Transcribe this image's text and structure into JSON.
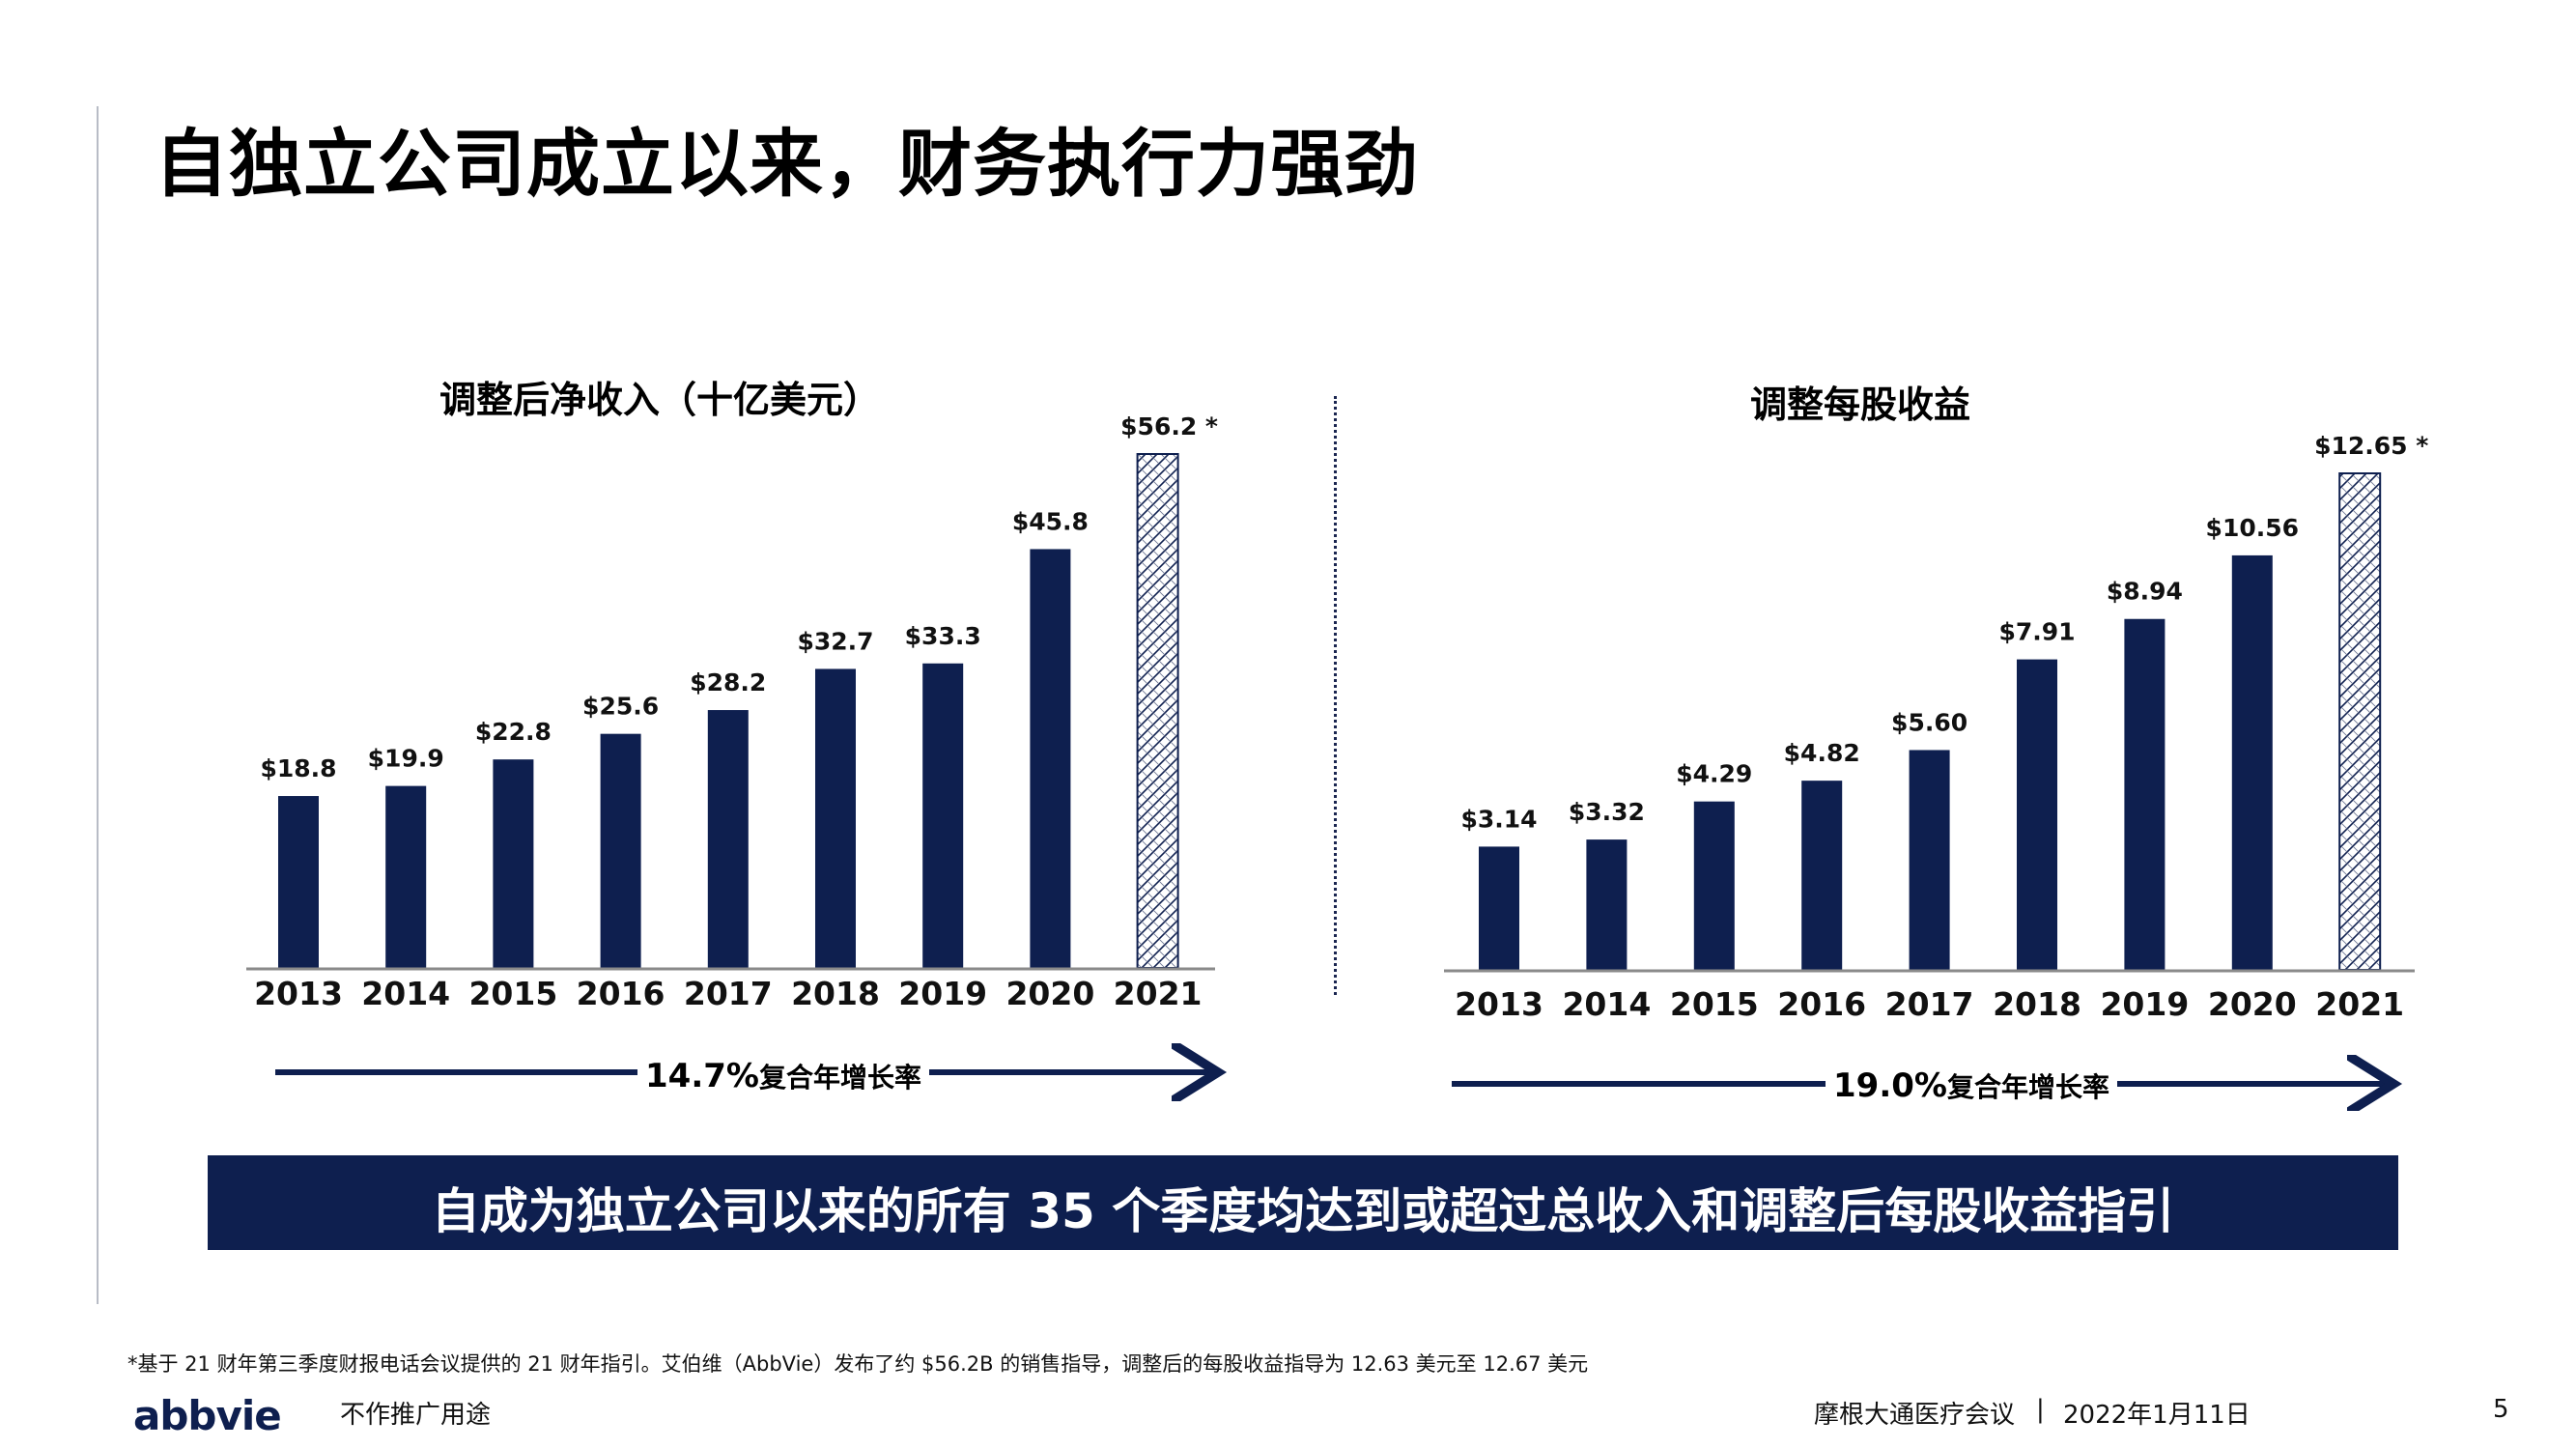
{
  "title": "自独立公司成立以来，财务执行力强劲",
  "colors": {
    "bar": "#0e1f4f",
    "axis": "#8a8a8a",
    "hatch": "#0e1f4f"
  },
  "chart_data": [
    {
      "type": "bar",
      "title": "调整后净收入（十亿美元）",
      "categories": [
        "2013",
        "2014",
        "2015",
        "2016",
        "2017",
        "2018",
        "2019",
        "2020",
        "2021"
      ],
      "values": [
        18.8,
        19.9,
        22.8,
        25.6,
        28.2,
        32.7,
        33.3,
        45.8,
        56.2
      ],
      "labels": [
        "$18.8",
        "$19.9",
        "$22.8",
        "$25.6",
        "$28.2",
        "$32.7",
        "$33.3",
        "$45.8",
        "$56.2 *"
      ],
      "hatched_last": true,
      "ylim": [
        0,
        56.2
      ],
      "cagr": "14.7%",
      "cagr_suffix": "复合年增长率"
    },
    {
      "type": "bar",
      "title": "调整每股收益",
      "categories": [
        "2013",
        "2014",
        "2015",
        "2016",
        "2017",
        "2018",
        "2019",
        "2020",
        "2021"
      ],
      "values": [
        3.14,
        3.32,
        4.29,
        4.82,
        5.6,
        7.91,
        8.94,
        10.56,
        12.65
      ],
      "labels": [
        "$3.14",
        "$3.32",
        "$4.29",
        "$4.82",
        "$5.60",
        "$7.91",
        "$8.94",
        "$10.56",
        "$12.65 *"
      ],
      "hatched_last": true,
      "ylim": [
        0,
        12.65
      ],
      "cagr": "19.0%",
      "cagr_suffix": "复合年增长率"
    }
  ],
  "banner": "自成为独立公司以来的所有 35 个季度均达到或超过总收入和调整后每股收益指引",
  "footnote": "*基于 21 财年第三季度财报电话会议提供的 21 财年指引。艾伯维（AbbVie）发布了约 $56.2B 的销售指导，调整后的每股收益指导为 12.63 美元至 12.67 美元",
  "footer": {
    "logo": "abbvie",
    "promo": "不作推广用途",
    "conference": "摩根大通医疗会议",
    "separator": "|",
    "date": "2022年1月11日",
    "page": "5"
  }
}
